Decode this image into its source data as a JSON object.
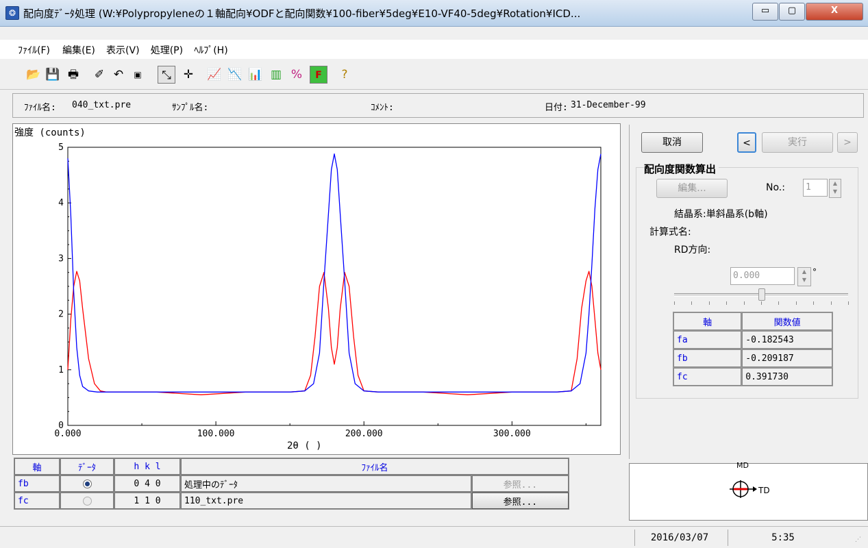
{
  "window": {
    "title": "配向度ﾃﾞｰﾀ処理 (W:¥Polypropyleneの１軸配向¥ODFと配向関数¥100-fiber¥5deg¥E10-VF40-5deg¥Rotation¥ICD...",
    "app_icon": "app-icon",
    "minimize": "▭",
    "maximize": "▢",
    "close": "X"
  },
  "menu": [
    "ﾌｧｲﾙ(F)",
    "編集(E)",
    "表示(V)",
    "処理(P)",
    "ﾍﾙﾌﾟ(H)"
  ],
  "toolbar": {
    "icons": [
      "open-icon",
      "save-icon",
      "print-icon",
      "edit-icon",
      "undo-icon",
      "small-square-icon",
      "cursor-pick-icon",
      "cursor-move-icon",
      "chart-r-icon",
      "chart-m-icon",
      "chart-b-icon",
      "chart-e-icon",
      "chart-p-icon",
      "chart-f-icon",
      "help-icon"
    ]
  },
  "info": {
    "filename_label": "ﾌｧｲﾙ名:",
    "filename": "040_txt.pre",
    "sample_label": "ｻﾝﾌﾟﾙ名:",
    "comment_label": "ｺﾒﾝﾄ:",
    "date_label": "日付:",
    "date": "31-December-99"
  },
  "chart_data": {
    "type": "line",
    "ylabel": "強度 (counts)",
    "xlabel": "2θ ( )",
    "xlim": [
      0,
      360
    ],
    "ylim": [
      0,
      5
    ],
    "x_ticks": [
      "0.000",
      "100.000",
      "200.000",
      "300.000"
    ],
    "y_ticks": [
      "0",
      "1",
      "2",
      "3",
      "4",
      "5"
    ],
    "grid": false,
    "series": [
      {
        "color": "#ff0000",
        "x": [
          0,
          2,
          4,
          6,
          8,
          10,
          14,
          18,
          22,
          26,
          30,
          60,
          90,
          120,
          150,
          160,
          164,
          167,
          170,
          173,
          176,
          178,
          180,
          182,
          184,
          187,
          190,
          193,
          196,
          200,
          210,
          240,
          270,
          300,
          330,
          340,
          344,
          347,
          350,
          352,
          354,
          356,
          358,
          360
        ],
        "y": [
          1.0,
          1.9,
          2.5,
          2.77,
          2.6,
          2.1,
          1.2,
          0.75,
          0.62,
          0.6,
          0.6,
          0.6,
          0.55,
          0.6,
          0.6,
          0.62,
          0.9,
          1.6,
          2.5,
          2.75,
          2.1,
          1.4,
          1.1,
          1.4,
          2.1,
          2.75,
          2.5,
          1.6,
          0.9,
          0.62,
          0.6,
          0.6,
          0.55,
          0.6,
          0.6,
          0.62,
          1.2,
          2.1,
          2.6,
          2.77,
          2.5,
          1.9,
          1.3,
          1.0
        ]
      },
      {
        "color": "#0000ff",
        "x": [
          0,
          2,
          4,
          6,
          8,
          10,
          14,
          20,
          30,
          60,
          90,
          120,
          150,
          160,
          166,
          170,
          173,
          176,
          178,
          180,
          182,
          184,
          187,
          190,
          194,
          200,
          210,
          240,
          270,
          300,
          330,
          340,
          346,
          350,
          352,
          354,
          356,
          358,
          360
        ],
        "y": [
          4.8,
          3.8,
          2.4,
          1.4,
          0.9,
          0.7,
          0.62,
          0.6,
          0.6,
          0.6,
          0.6,
          0.6,
          0.6,
          0.62,
          0.75,
          1.3,
          2.6,
          3.8,
          4.6,
          4.88,
          4.6,
          3.8,
          2.6,
          1.3,
          0.75,
          0.62,
          0.6,
          0.6,
          0.6,
          0.6,
          0.6,
          0.62,
          0.75,
          1.3,
          2.0,
          2.9,
          3.9,
          4.6,
          4.88
        ]
      }
    ]
  },
  "panel": {
    "cancel": "取消",
    "prev": "<",
    "run": "実行",
    "next": ">",
    "group_title": "配向度関数算出",
    "edit": "編集...",
    "no_label": "No.:",
    "no_value": "1",
    "crystal": "結晶系:単斜晶系(b軸)",
    "formula_label": "計算式名:",
    "rd_label": "RD方向:",
    "rd_value": "0.000",
    "rd_unit": "°",
    "slider_value": 0.5,
    "func_table": {
      "headers": [
        "軸",
        "関数値"
      ],
      "rows": [
        [
          "fa",
          "-0.182543"
        ],
        [
          "fb",
          "-0.209187"
        ],
        [
          "fc",
          "0.391730"
        ]
      ]
    }
  },
  "orientation": {
    "md": "MD",
    "td": "TD"
  },
  "axis_table": {
    "headers": [
      "軸",
      "ﾃﾞｰﾀ",
      "h k l",
      "ﾌｧｲﾙ名"
    ],
    "rows": [
      {
        "axis": "fb",
        "selected": true,
        "hkl": "0 4 0",
        "file": "処理中のﾃﾞｰﾀ",
        "ref": "参照...",
        "ref_enabled": false
      },
      {
        "axis": "fc",
        "selected": false,
        "hkl": "1 1 0",
        "file": "110_txt.pre",
        "ref": "参照...",
        "ref_enabled": true
      }
    ]
  },
  "status": {
    "date": "2016/03/07",
    "time": "5:35"
  }
}
